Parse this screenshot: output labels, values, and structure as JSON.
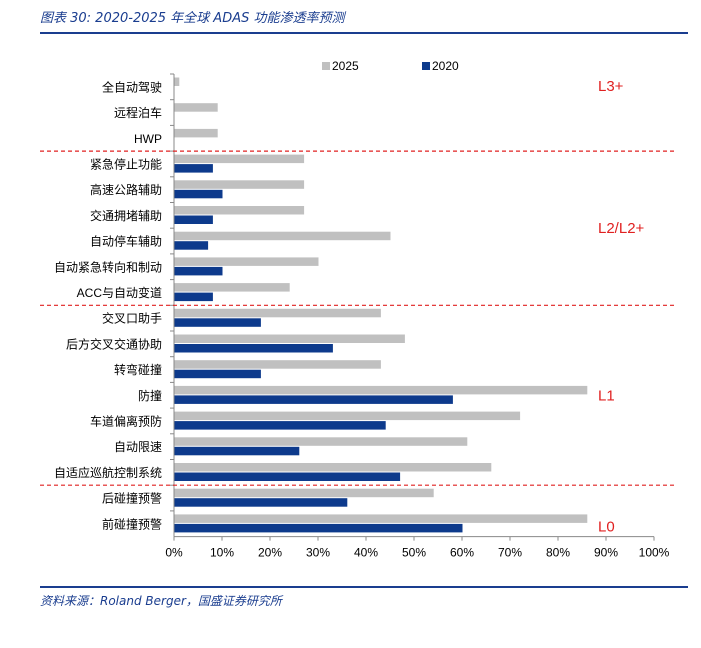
{
  "header": {
    "title": "图表 30:  2020-2025 年全球 ADAS 功能渗透率预测"
  },
  "footer": {
    "source": "资料来源：Roland Berger，国盛证券研究所"
  },
  "colors": {
    "series_2025": "#c0c0c0",
    "series_2020": "#0d3a8c",
    "level_line": "#e02020",
    "accent": "#1a3d8f"
  },
  "chart_data": {
    "type": "bar",
    "orientation": "horizontal",
    "title": "",
    "xlabel": "",
    "ylabel": "",
    "xlim": [
      0,
      1
    ],
    "xticks": [
      "0%",
      "10%",
      "20%",
      "30%",
      "40%",
      "50%",
      "60%",
      "70%",
      "80%",
      "90%",
      "100%"
    ],
    "legend": {
      "placement": "top",
      "entries": [
        "2025",
        "2020"
      ]
    },
    "categories": [
      "全自动驾驶",
      "远程泊车",
      "HWP",
      "紧急停止功能",
      "高速公路辅助",
      "交通拥堵辅助",
      "自动停车辅助",
      "自动紧急转向和制动",
      "ACC与自动变道",
      "交叉口助手",
      "后方交叉交通协助",
      "转弯碰撞",
      "防撞",
      "车道偏离预防",
      "自动限速",
      "自适应巡航控制系统",
      "后碰撞预警",
      "前碰撞预警"
    ],
    "series": [
      {
        "name": "2025",
        "values": [
          0.01,
          0.09,
          0.09,
          0.27,
          0.27,
          0.27,
          0.45,
          0.3,
          0.24,
          0.43,
          0.48,
          0.43,
          0.86,
          0.72,
          0.61,
          0.66,
          0.54,
          0.86
        ]
      },
      {
        "name": "2020",
        "values": [
          0,
          0,
          0,
          0.08,
          0.1,
          0.08,
          0.07,
          0.1,
          0.08,
          0.18,
          0.33,
          0.18,
          0.58,
          0.44,
          0.26,
          0.47,
          0.36,
          0.6
        ]
      }
    ],
    "level_groups": [
      {
        "label": "L3+",
        "first_index": 0,
        "last_index": 2
      },
      {
        "label": "L2/L2+",
        "first_index": 3,
        "last_index": 8
      },
      {
        "label": "L1",
        "first_index": 9,
        "last_index": 15
      },
      {
        "label": "L0",
        "first_index": 16,
        "last_index": 17
      }
    ]
  }
}
